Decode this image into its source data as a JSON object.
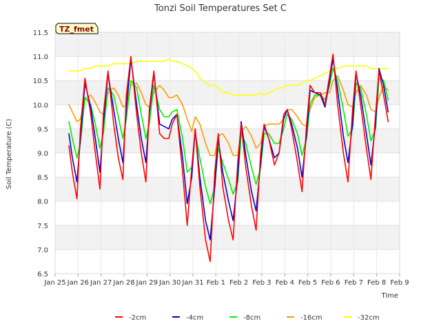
{
  "chart_data": {
    "type": "line",
    "title": "Tonzi Soil Temperatures Set C",
    "xlabel": "Time",
    "ylabel": "Soil Temperature (C)",
    "badge": "TZ_fmet",
    "ylim": [
      6.5,
      11.5
    ],
    "yticks": [
      "6.5",
      "7.0",
      "7.5",
      "8.0",
      "8.5",
      "9.0",
      "9.5",
      "10.0",
      "10.5",
      "11.0",
      "11.5"
    ],
    "xlim": [
      0,
      15
    ],
    "xticks": [
      "Jan 25",
      "Jan 26",
      "Jan 27",
      "Jan 28",
      "Jan 29",
      "Jan 30",
      "Jan 31",
      "Feb 1",
      "Feb 2",
      "Feb 3",
      "Feb 4",
      "Feb 5",
      "Feb 6",
      "Feb 7",
      "Feb 8",
      "Feb 9"
    ],
    "grid": true,
    "legend_position": "bottom",
    "x": [
      0.6,
      0.75,
      0.95,
      1.1,
      1.3,
      1.55,
      1.75,
      1.95,
      2.1,
      2.3,
      2.55,
      2.75,
      2.95,
      3.1,
      3.3,
      3.55,
      3.75,
      3.95,
      4.1,
      4.3,
      4.55,
      4.75,
      4.95,
      5.1,
      5.3,
      5.55,
      5.75,
      5.95,
      6.1,
      6.3,
      6.55,
      6.75,
      6.95,
      7.1,
      7.3,
      7.55,
      7.75,
      7.95,
      8.1,
      8.3,
      8.55,
      8.75,
      8.95,
      9.1,
      9.3,
      9.55,
      9.75,
      9.95,
      10.1,
      10.3,
      10.55,
      10.75,
      10.95,
      11.1,
      11.3,
      11.55,
      11.75,
      11.95,
      12.1,
      12.3,
      12.55,
      12.75,
      12.95,
      13.1,
      13.3,
      13.55,
      13.75,
      13.95,
      14.1,
      14.3,
      14.5
    ],
    "series": [
      {
        "name": "-2cm",
        "color": "#ff0000",
        "values": [
          9.15,
          8.6,
          8.05,
          9.5,
          10.55,
          9.8,
          9.0,
          8.25,
          9.8,
          10.7,
          9.6,
          8.9,
          8.45,
          10.2,
          11.0,
          9.8,
          9.0,
          8.4,
          9.9,
          10.7,
          9.4,
          9.3,
          9.3,
          9.6,
          9.8,
          8.6,
          7.5,
          8.7,
          9.5,
          8.3,
          7.2,
          6.75,
          8.6,
          9.4,
          8.3,
          7.6,
          7.2,
          8.8,
          9.6,
          8.7,
          7.9,
          7.4,
          9.0,
          9.6,
          9.3,
          8.75,
          9.0,
          9.8,
          9.9,
          9.5,
          8.8,
          8.2,
          9.6,
          10.4,
          10.25,
          10.25,
          10.0,
          10.6,
          11.05,
          10.0,
          9.0,
          8.4,
          9.9,
          10.7,
          10.0,
          9.1,
          8.45,
          9.8,
          10.7,
          10.2,
          9.65
        ]
      },
      {
        "name": "-4cm",
        "color": "#0000cc",
        "values": [
          9.4,
          8.9,
          8.4,
          9.3,
          10.45,
          9.95,
          9.3,
          8.6,
          9.6,
          10.65,
          9.9,
          9.3,
          8.8,
          9.9,
          10.95,
          10.0,
          9.3,
          8.8,
          9.8,
          10.65,
          9.6,
          9.55,
          9.5,
          9.7,
          9.8,
          8.9,
          7.95,
          8.5,
          9.5,
          8.5,
          7.6,
          7.2,
          8.3,
          9.3,
          8.6,
          8.0,
          7.6,
          8.5,
          9.65,
          8.95,
          8.2,
          7.8,
          8.8,
          9.55,
          9.3,
          8.9,
          9.0,
          9.7,
          9.9,
          9.6,
          9.1,
          8.5,
          9.4,
          10.3,
          10.25,
          10.2,
          9.95,
          10.5,
          10.95,
          10.3,
          9.35,
          8.8,
          9.6,
          10.65,
          10.2,
          9.4,
          8.75,
          9.6,
          10.75,
          10.4,
          9.85
        ]
      },
      {
        "name": "-8cm",
        "color": "#00ee00",
        "values": [
          9.65,
          9.3,
          8.9,
          9.2,
          10.15,
          10.0,
          9.6,
          9.1,
          9.4,
          10.35,
          10.2,
          9.75,
          9.3,
          9.7,
          10.5,
          10.35,
          9.8,
          9.3,
          9.6,
          10.4,
          9.9,
          9.75,
          9.75,
          9.85,
          9.9,
          9.3,
          8.6,
          8.7,
          9.4,
          8.9,
          8.3,
          7.95,
          8.3,
          9.1,
          8.8,
          8.45,
          8.15,
          8.4,
          9.4,
          9.2,
          8.7,
          8.35,
          8.7,
          9.4,
          9.4,
          9.2,
          9.2,
          9.5,
          9.8,
          9.7,
          9.4,
          8.95,
          9.3,
          10.0,
          10.2,
          10.2,
          10.1,
          10.4,
          10.75,
          10.5,
          9.9,
          9.35,
          9.5,
          10.45,
          10.35,
          9.8,
          9.25,
          9.5,
          10.55,
          10.5,
          10.1
        ]
      },
      {
        "name": "-16cm",
        "color": "#ff9900",
        "values": [
          10.0,
          9.85,
          9.65,
          9.7,
          10.1,
          10.2,
          10.05,
          9.85,
          9.8,
          10.25,
          10.35,
          10.2,
          9.95,
          10.0,
          10.4,
          10.45,
          10.25,
          10.0,
          9.95,
          10.25,
          10.4,
          10.3,
          10.15,
          10.15,
          10.2,
          10.0,
          9.7,
          9.45,
          9.75,
          9.6,
          9.2,
          8.95,
          8.95,
          9.35,
          9.4,
          9.2,
          8.95,
          8.95,
          9.45,
          9.55,
          9.35,
          9.1,
          9.2,
          9.55,
          9.6,
          9.6,
          9.6,
          9.7,
          9.9,
          9.9,
          9.75,
          9.6,
          9.55,
          9.9,
          10.15,
          10.2,
          10.25,
          10.25,
          10.5,
          10.6,
          10.3,
          10.0,
          9.95,
          10.25,
          10.4,
          10.2,
          9.9,
          9.85,
          10.15,
          10.4,
          10.3
        ]
      },
      {
        "name": "-32cm",
        "color": "#ffff00",
        "values": [
          10.7,
          10.7,
          10.7,
          10.7,
          10.75,
          10.75,
          10.8,
          10.8,
          10.8,
          10.8,
          10.85,
          10.85,
          10.85,
          10.85,
          10.85,
          10.9,
          10.9,
          10.9,
          10.9,
          10.9,
          10.9,
          10.9,
          10.95,
          10.9,
          10.9,
          10.85,
          10.8,
          10.75,
          10.7,
          10.55,
          10.45,
          10.4,
          10.4,
          10.35,
          10.25,
          10.25,
          10.2,
          10.2,
          10.2,
          10.2,
          10.2,
          10.2,
          10.25,
          10.2,
          10.25,
          10.3,
          10.35,
          10.35,
          10.4,
          10.4,
          10.4,
          10.45,
          10.5,
          10.5,
          10.55,
          10.6,
          10.65,
          10.7,
          10.75,
          10.75,
          10.8,
          10.8,
          10.8,
          10.8,
          10.8,
          10.8,
          10.75,
          10.75,
          10.75,
          10.75,
          10.75
        ]
      }
    ]
  }
}
